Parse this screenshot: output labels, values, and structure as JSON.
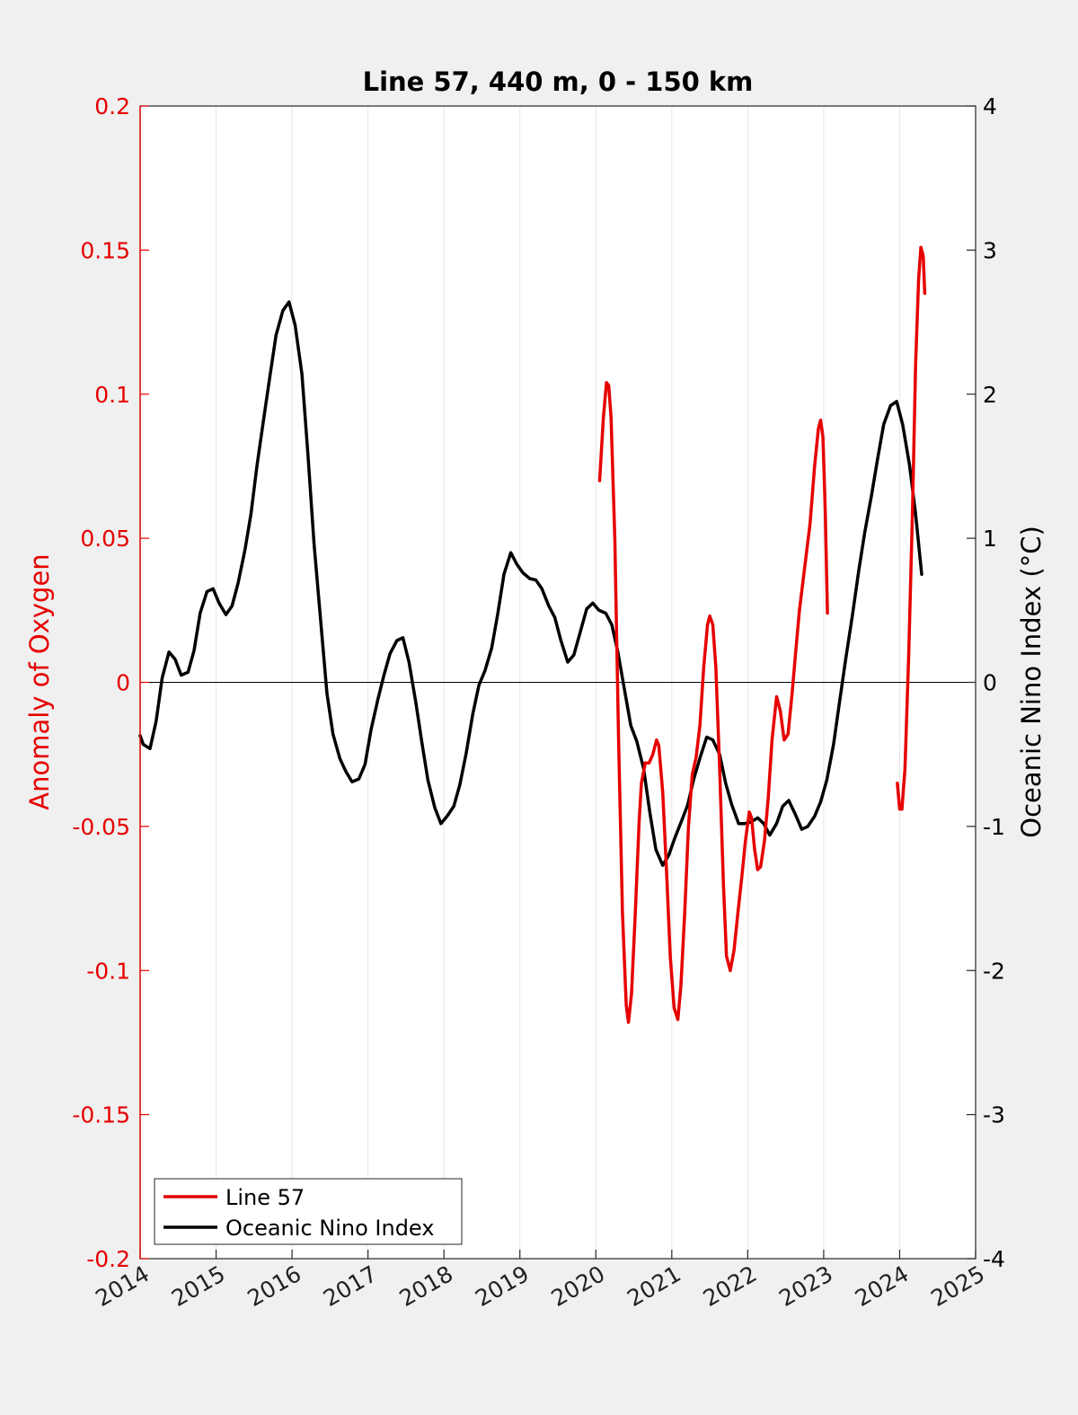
{
  "chart_data": {
    "type": "line",
    "title": "Line 57, 440 m, 0 - 150 km",
    "xlabel": "",
    "ylabel_left": "Anomaly of Oxygen",
    "ylabel_right": "Oceanic Nino Index (°C)",
    "xlim": [
      2014,
      2025
    ],
    "ylim_left": [
      -0.2,
      0.2
    ],
    "ylim_right": [
      -4,
      4
    ],
    "x_ticks": [
      "2014",
      "2015",
      "2016",
      "2017",
      "2018",
      "2019",
      "2020",
      "2021",
      "2022",
      "2023",
      "2024",
      "2025"
    ],
    "y_left_ticks": [
      "-0.2",
      "-0.15",
      "-0.1",
      "-0.05",
      "0",
      "0.05",
      "0.1",
      "0.15",
      "0.2"
    ],
    "y_right_ticks": [
      "-4",
      "-3",
      "-2",
      "-1",
      "0",
      "1",
      "2",
      "3",
      "4"
    ],
    "grid": "vertical",
    "legend_position": "bottom-left",
    "colors": {
      "left_axis": "#e60000",
      "line57": "#e60000",
      "oni": "#000000",
      "zero_line": "#000000"
    },
    "series": [
      {
        "name": "Line 57",
        "axis": "left",
        "color": "#e60000",
        "segments": [
          [
            [
              2020.05,
              0.07
            ],
            [
              2020.1,
              0.092
            ],
            [
              2020.14,
              0.104
            ],
            [
              2020.17,
              0.103
            ],
            [
              2020.2,
              0.092
            ],
            [
              2020.25,
              0.05
            ],
            [
              2020.3,
              -0.02
            ],
            [
              2020.35,
              -0.08
            ],
            [
              2020.4,
              -0.112
            ],
            [
              2020.43,
              -0.118
            ],
            [
              2020.47,
              -0.108
            ],
            [
              2020.52,
              -0.08
            ],
            [
              2020.57,
              -0.048
            ],
            [
              2020.6,
              -0.035
            ],
            [
              2020.65,
              -0.028
            ],
            [
              2020.7,
              -0.028
            ],
            [
              2020.75,
              -0.025
            ],
            [
              2020.8,
              -0.02
            ],
            [
              2020.83,
              -0.022
            ],
            [
              2020.88,
              -0.038
            ],
            [
              2020.93,
              -0.065
            ],
            [
              2020.98,
              -0.095
            ],
            [
              2021.03,
              -0.113
            ],
            [
              2021.08,
              -0.117
            ],
            [
              2021.12,
              -0.105
            ],
            [
              2021.17,
              -0.08
            ],
            [
              2021.22,
              -0.05
            ],
            [
              2021.27,
              -0.032
            ],
            [
              2021.32,
              -0.026
            ],
            [
              2021.37,
              -0.015
            ],
            [
              2021.42,
              0.005
            ],
            [
              2021.47,
              0.02
            ],
            [
              2021.5,
              0.023
            ],
            [
              2021.54,
              0.02
            ],
            [
              2021.58,
              0.005
            ],
            [
              2021.63,
              -0.03
            ],
            [
              2021.68,
              -0.07
            ],
            [
              2021.72,
              -0.095
            ],
            [
              2021.77,
              -0.1
            ],
            [
              2021.82,
              -0.093
            ],
            [
              2021.87,
              -0.08
            ],
            [
              2021.92,
              -0.068
            ],
            [
              2021.97,
              -0.055
            ],
            [
              2022.02,
              -0.045
            ],
            [
              2022.05,
              -0.047
            ],
            [
              2022.09,
              -0.058
            ],
            [
              2022.13,
              -0.065
            ],
            [
              2022.17,
              -0.064
            ],
            [
              2022.22,
              -0.055
            ],
            [
              2022.27,
              -0.04
            ],
            [
              2022.32,
              -0.02
            ],
            [
              2022.38,
              -0.005
            ],
            [
              2022.43,
              -0.01
            ],
            [
              2022.48,
              -0.02
            ],
            [
              2022.53,
              -0.018
            ],
            [
              2022.58,
              -0.005
            ],
            [
              2022.63,
              0.01
            ],
            [
              2022.68,
              0.025
            ],
            [
              2022.75,
              0.04
            ],
            [
              2022.82,
              0.055
            ],
            [
              2022.88,
              0.075
            ],
            [
              2022.93,
              0.088
            ],
            [
              2022.96,
              0.091
            ],
            [
              2022.99,
              0.085
            ],
            [
              2023.02,
              0.06
            ],
            [
              2023.05,
              0.024
            ]
          ],
          [
            [
              2023.97,
              -0.035
            ],
            [
              2024.0,
              -0.044
            ],
            [
              2024.03,
              -0.044
            ],
            [
              2024.07,
              -0.03
            ],
            [
              2024.12,
              0.01
            ],
            [
              2024.17,
              0.06
            ],
            [
              2024.21,
              0.11
            ],
            [
              2024.25,
              0.14
            ],
            [
              2024.28,
              0.151
            ],
            [
              2024.31,
              0.148
            ],
            [
              2024.33,
              0.135
            ]
          ]
        ]
      },
      {
        "name": "Oceanic Nino Index",
        "axis": "right",
        "color": "#000000",
        "segments": [
          [
            [
              2014.0,
              -0.37
            ],
            [
              2014.04,
              -0.43
            ],
            [
              2014.13,
              -0.46
            ],
            [
              2014.21,
              -0.27
            ],
            [
              2014.29,
              0.03
            ],
            [
              2014.38,
              0.21
            ],
            [
              2014.46,
              0.16
            ],
            [
              2014.54,
              0.05
            ],
            [
              2014.63,
              0.07
            ],
            [
              2014.71,
              0.22
            ],
            [
              2014.79,
              0.48
            ],
            [
              2014.88,
              0.63
            ],
            [
              2014.96,
              0.65
            ],
            [
              2015.04,
              0.55
            ],
            [
              2015.13,
              0.47
            ],
            [
              2015.21,
              0.53
            ],
            [
              2015.29,
              0.69
            ],
            [
              2015.38,
              0.92
            ],
            [
              2015.46,
              1.17
            ],
            [
              2015.54,
              1.51
            ],
            [
              2015.63,
              1.84
            ],
            [
              2015.71,
              2.13
            ],
            [
              2015.79,
              2.41
            ],
            [
              2015.88,
              2.58
            ],
            [
              2015.96,
              2.64
            ],
            [
              2016.04,
              2.48
            ],
            [
              2016.13,
              2.14
            ],
            [
              2016.21,
              1.58
            ],
            [
              2016.29,
              0.96
            ],
            [
              2016.38,
              0.41
            ],
            [
              2016.46,
              -0.08
            ],
            [
              2016.54,
              -0.36
            ],
            [
              2016.63,
              -0.53
            ],
            [
              2016.71,
              -0.62
            ],
            [
              2016.79,
              -0.69
            ],
            [
              2016.88,
              -0.67
            ],
            [
              2016.96,
              -0.57
            ],
            [
              2017.04,
              -0.33
            ],
            [
              2017.13,
              -0.12
            ],
            [
              2017.21,
              0.05
            ],
            [
              2017.29,
              0.2
            ],
            [
              2017.38,
              0.29
            ],
            [
              2017.46,
              0.31
            ],
            [
              2017.54,
              0.14
            ],
            [
              2017.63,
              -0.14
            ],
            [
              2017.71,
              -0.42
            ],
            [
              2017.79,
              -0.68
            ],
            [
              2017.88,
              -0.87
            ],
            [
              2017.96,
              -0.98
            ],
            [
              2018.04,
              -0.93
            ],
            [
              2018.13,
              -0.86
            ],
            [
              2018.21,
              -0.71
            ],
            [
              2018.29,
              -0.5
            ],
            [
              2018.38,
              -0.22
            ],
            [
              2018.46,
              -0.02
            ],
            [
              2018.54,
              0.08
            ],
            [
              2018.63,
              0.24
            ],
            [
              2018.71,
              0.48
            ],
            [
              2018.79,
              0.75
            ],
            [
              2018.88,
              0.9
            ],
            [
              2018.96,
              0.82
            ],
            [
              2019.04,
              0.76
            ],
            [
              2019.13,
              0.72
            ],
            [
              2019.21,
              0.71
            ],
            [
              2019.29,
              0.65
            ],
            [
              2019.38,
              0.53
            ],
            [
              2019.46,
              0.45
            ],
            [
              2019.54,
              0.29
            ],
            [
              2019.63,
              0.14
            ],
            [
              2019.71,
              0.19
            ],
            [
              2019.79,
              0.34
            ],
            [
              2019.88,
              0.51
            ],
            [
              2019.96,
              0.55
            ],
            [
              2020.04,
              0.5
            ],
            [
              2020.13,
              0.48
            ],
            [
              2020.21,
              0.4
            ],
            [
              2020.29,
              0.21
            ],
            [
              2020.38,
              -0.06
            ],
            [
              2020.46,
              -0.3
            ],
            [
              2020.54,
              -0.41
            ],
            [
              2020.63,
              -0.6
            ],
            [
              2020.71,
              -0.9
            ],
            [
              2020.79,
              -1.16
            ],
            [
              2020.88,
              -1.27
            ],
            [
              2020.96,
              -1.2
            ],
            [
              2021.04,
              -1.08
            ],
            [
              2021.13,
              -0.96
            ],
            [
              2021.21,
              -0.85
            ],
            [
              2021.29,
              -0.67
            ],
            [
              2021.38,
              -0.51
            ],
            [
              2021.46,
              -0.38
            ],
            [
              2021.54,
              -0.4
            ],
            [
              2021.63,
              -0.5
            ],
            [
              2021.71,
              -0.7
            ],
            [
              2021.79,
              -0.85
            ],
            [
              2021.88,
              -0.98
            ],
            [
              2021.96,
              -0.98
            ],
            [
              2022.04,
              -0.97
            ],
            [
              2022.13,
              -0.94
            ],
            [
              2022.21,
              -0.98
            ],
            [
              2022.29,
              -1.06
            ],
            [
              2022.38,
              -0.98
            ],
            [
              2022.46,
              -0.86
            ],
            [
              2022.54,
              -0.82
            ],
            [
              2022.63,
              -0.92
            ],
            [
              2022.71,
              -1.02
            ],
            [
              2022.79,
              -1.0
            ],
            [
              2022.88,
              -0.93
            ],
            [
              2022.96,
              -0.83
            ],
            [
              2023.04,
              -0.68
            ],
            [
              2023.13,
              -0.43
            ],
            [
              2023.21,
              -0.13
            ],
            [
              2023.29,
              0.16
            ],
            [
              2023.38,
              0.47
            ],
            [
              2023.46,
              0.77
            ],
            [
              2023.54,
              1.04
            ],
            [
              2023.63,
              1.3
            ],
            [
              2023.71,
              1.55
            ],
            [
              2023.79,
              1.79
            ],
            [
              2023.88,
              1.92
            ],
            [
              2023.96,
              1.95
            ],
            [
              2024.04,
              1.79
            ],
            [
              2024.13,
              1.51
            ],
            [
              2024.21,
              1.17
            ],
            [
              2024.29,
              0.75
            ]
          ]
        ]
      }
    ]
  }
}
